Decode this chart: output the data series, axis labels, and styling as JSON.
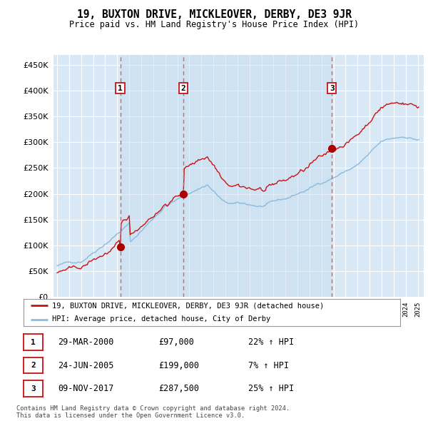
{
  "title": "19, BUXTON DRIVE, MICKLEOVER, DERBY, DE3 9JR",
  "subtitle": "Price paid vs. HM Land Registry's House Price Index (HPI)",
  "legend_property": "19, BUXTON DRIVE, MICKLEOVER, DERBY, DE3 9JR (detached house)",
  "legend_hpi": "HPI: Average price, detached house, City of Derby",
  "footnote1": "Contains HM Land Registry data © Crown copyright and database right 2024.",
  "footnote2": "This data is licensed under the Open Government Licence v3.0.",
  "table_rows": [
    {
      "num": "1",
      "date": "29-MAR-2000",
      "price": "£97,000",
      "pct": "22% ↑ HPI"
    },
    {
      "num": "2",
      "date": "24-JUN-2005",
      "price": "£199,000",
      "pct": "7% ↑ HPI"
    },
    {
      "num": "3",
      "date": "09-NOV-2017",
      "price": "£287,500",
      "pct": "25% ↑ HPI"
    }
  ],
  "sale_prices": [
    97000,
    199000,
    287500
  ],
  "vline_years": [
    2000.25,
    2005.5,
    2017.86
  ],
  "sale_labels": [
    "1",
    "2",
    "3"
  ],
  "ylim": [
    0,
    470000
  ],
  "yticks": [
    0,
    50000,
    100000,
    150000,
    200000,
    250000,
    300000,
    350000,
    400000,
    450000
  ],
  "xlim_start": 1994.7,
  "xlim_end": 2025.5,
  "plot_bg": "#d8e8f5",
  "grid_color": "#ffffff",
  "vline_color": "#e06060",
  "marker_color": "#aa0000",
  "red_line_color": "#cc1111",
  "blue_line_color": "#88bbdd"
}
